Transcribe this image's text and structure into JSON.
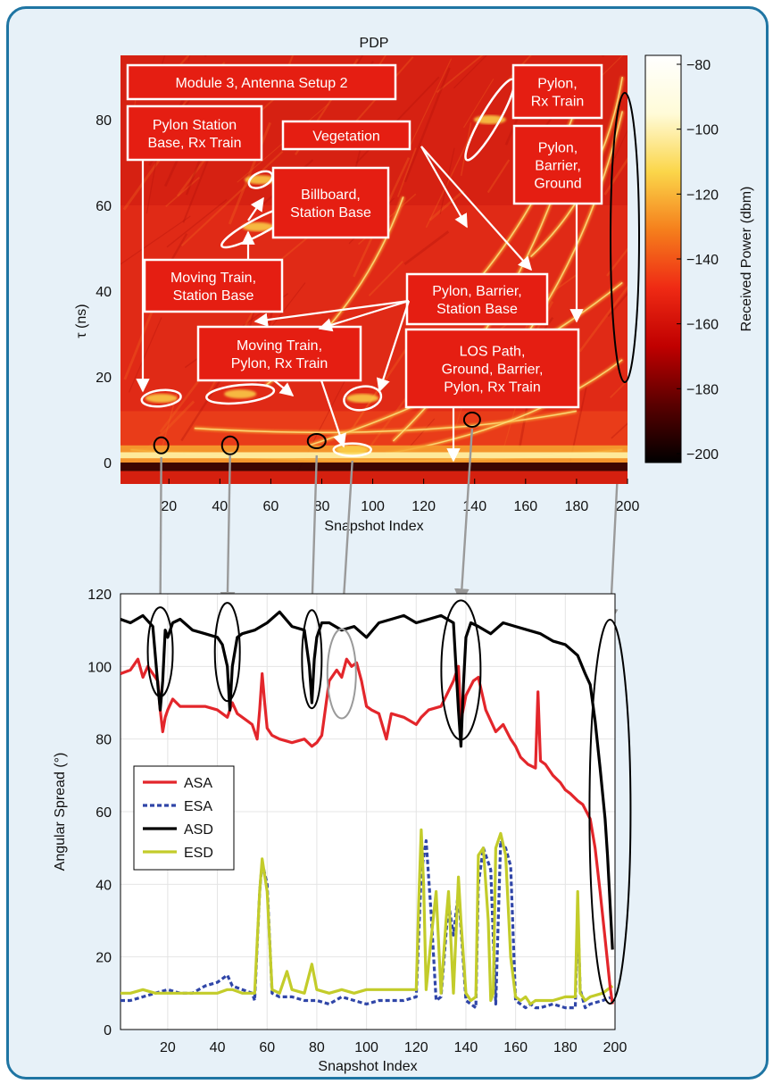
{
  "chart_data": [
    {
      "type": "heatmap",
      "title": "PDP",
      "xlabel": "Snapshot Index",
      "ylabel": "τ (ns)",
      "xticks": [
        20,
        40,
        60,
        80,
        100,
        120,
        140,
        160,
        180,
        200
      ],
      "yticks": [
        0,
        20,
        40,
        60,
        80
      ],
      "xlim": [
        1,
        200
      ],
      "ylim": [
        -5,
        95
      ],
      "colorbar": {
        "label": "Received Power (dbm)",
        "ticks": [
          "−80",
          "−100",
          "−120",
          "−140",
          "−160",
          "−180",
          "−200"
        ],
        "range": [
          -200,
          -80
        ],
        "colors": [
          "#000000",
          "#5a0000",
          "#c00000",
          "#ef2a14",
          "#f57f1c",
          "#fbd64a",
          "#fffbd8",
          "#ffffff"
        ]
      },
      "annotations": [
        {
          "id": "module",
          "lines": [
            "Module 3, Antenna Setup 2"
          ]
        },
        {
          "id": "pylon-station",
          "lines": [
            "Pylon Station",
            "Base, Rx Train"
          ]
        },
        {
          "id": "vegetation",
          "lines": [
            "Vegetation"
          ]
        },
        {
          "id": "pylon-rx",
          "lines": [
            "Pylon,",
            "Rx Train"
          ]
        },
        {
          "id": "pylon-barrier-ground",
          "lines": [
            "Pylon,",
            "Barrier,",
            "Ground"
          ]
        },
        {
          "id": "billboard",
          "lines": [
            "Billboard,",
            "Station Base"
          ]
        },
        {
          "id": "moving-station",
          "lines": [
            "Moving Train,",
            "Station Base"
          ]
        },
        {
          "id": "pylon-barrier-station",
          "lines": [
            "Pylon, Barrier,",
            "Station Base"
          ]
        },
        {
          "id": "moving-pylon",
          "lines": [
            "Moving Train,",
            "Pylon, Rx Train"
          ]
        },
        {
          "id": "los",
          "lines": [
            "LOS Path,",
            "Ground, Barrier,",
            "Pylon, Rx Train"
          ]
        }
      ],
      "path_traces": [
        {
          "x": [
            5,
            198
          ],
          "tau": [
            3,
            3
          ]
        },
        {
          "x": [
            30,
            180
          ],
          "tau": [
            8,
            12
          ]
        },
        {
          "x": [
            105,
            198
          ],
          "tau": [
            2,
            24
          ]
        },
        {
          "x": [
            75,
            198
          ],
          "tau": [
            4,
            42
          ]
        },
        {
          "x": [
            130,
            185
          ],
          "tau": [
            35,
            92
          ]
        },
        {
          "x": [
            108,
            172
          ],
          "tau": [
            5,
            64
          ]
        },
        {
          "x": [
            148,
            198
          ],
          "tau": [
            20,
            82
          ]
        },
        {
          "x": [
            162,
            198
          ],
          "tau": [
            48,
            90
          ]
        },
        {
          "x": [
            58,
            112
          ],
          "tau": [
            18,
            62
          ]
        }
      ],
      "ellipses_tau": [
        {
          "x": 17,
          "tau": 15
        },
        {
          "x": 48,
          "tau": 16
        },
        {
          "x": 96,
          "tau": 15
        },
        {
          "x": 55,
          "tau": 55
        },
        {
          "x": 56,
          "tau": 66
        },
        {
          "x": 146,
          "tau": 80
        },
        {
          "x": 92,
          "tau": 3
        }
      ],
      "markers_tau": [
        {
          "x": 17,
          "tau": 4
        },
        {
          "x": 44,
          "tau": 4
        },
        {
          "x": 78,
          "tau": 5
        },
        {
          "x": 139,
          "tau": 10
        },
        {
          "x": 200,
          "tau": 25
        }
      ]
    },
    {
      "type": "line",
      "xlabel": "Snapshot Index",
      "ylabel": "Angular Spread (°)",
      "xlim": [
        1,
        200
      ],
      "ylim": [
        0,
        120
      ],
      "xticks": [
        20,
        40,
        60,
        80,
        100,
        120,
        140,
        160,
        180,
        200
      ],
      "yticks": [
        0,
        20,
        40,
        60,
        80,
        100,
        120
      ],
      "legend": "middle-left",
      "series": [
        {
          "name": "ASA",
          "color": "#e3262b",
          "style": "solid",
          "x": [
            1,
            5,
            8,
            10,
            12,
            14,
            16,
            17,
            18,
            19,
            20,
            22,
            25,
            30,
            35,
            40,
            42,
            44,
            46,
            48,
            52,
            54,
            56,
            57,
            58,
            59,
            60,
            62,
            65,
            70,
            75,
            78,
            80,
            82,
            85,
            88,
            90,
            92,
            94,
            96,
            98,
            100,
            102,
            105,
            108,
            110,
            115,
            120,
            122,
            125,
            130,
            135,
            137,
            138,
            140,
            143,
            145,
            148,
            150,
            152,
            155,
            158,
            160,
            162,
            165,
            168,
            169,
            170,
            172,
            175,
            178,
            180,
            182,
            185,
            187,
            190,
            192,
            194,
            196,
            198,
            199
          ],
          "y": [
            98,
            99,
            102,
            97,
            100,
            98,
            96,
            88,
            82,
            86,
            88,
            91,
            89,
            89,
            89,
            88,
            87,
            86,
            90,
            87,
            85,
            84,
            80,
            88,
            98,
            90,
            83,
            81,
            80,
            79,
            80,
            78,
            79,
            81,
            96,
            99,
            97,
            102,
            100,
            101,
            96,
            89,
            88,
            87,
            80,
            87,
            86,
            84,
            86,
            88,
            89,
            96,
            100,
            85,
            92,
            96,
            97,
            88,
            85,
            82,
            84,
            80,
            78,
            75,
            73,
            72,
            93,
            74,
            73,
            70,
            68,
            66,
            65,
            63,
            62,
            58,
            50,
            38,
            25,
            12,
            7
          ]
        },
        {
          "name": "ESA",
          "color": "#3046a8",
          "style": "dashed",
          "x": [
            1,
            5,
            10,
            15,
            20,
            25,
            30,
            35,
            40,
            44,
            46,
            50,
            54,
            55,
            57,
            58,
            60,
            62,
            65,
            70,
            75,
            80,
            85,
            90,
            95,
            100,
            105,
            110,
            115,
            120,
            122,
            124,
            126,
            128,
            130,
            133,
            135,
            137,
            138,
            140,
            142,
            144,
            145,
            147,
            150,
            152,
            154,
            156,
            158,
            160,
            162,
            164,
            166,
            168,
            170,
            175,
            180,
            184,
            185,
            186,
            188,
            190,
            195,
            199
          ],
          "y": [
            8,
            8,
            9,
            10,
            11,
            10,
            10,
            12,
            13,
            15,
            12,
            11,
            10,
            8,
            38,
            46,
            40,
            10,
            9,
            9,
            8,
            8,
            7,
            9,
            8,
            7,
            8,
            8,
            8,
            9,
            43,
            52,
            32,
            8,
            9,
            35,
            26,
            38,
            28,
            8,
            7,
            6,
            40,
            50,
            44,
            7,
            52,
            50,
            45,
            8,
            7,
            6,
            7,
            6,
            6,
            7,
            6,
            6,
            33,
            11,
            6,
            7,
            8,
            9
          ]
        },
        {
          "name": "ASD",
          "color": "#000000",
          "style": "solid",
          "x": [
            1,
            5,
            10,
            14,
            16,
            17,
            18,
            19,
            20,
            22,
            25,
            30,
            35,
            40,
            42,
            44,
            45,
            46,
            48,
            50,
            55,
            60,
            65,
            70,
            75,
            77,
            78,
            79,
            80,
            82,
            85,
            90,
            95,
            100,
            105,
            110,
            115,
            120,
            125,
            130,
            135,
            136,
            137,
            138,
            139,
            140,
            142,
            145,
            150,
            155,
            160,
            165,
            170,
            175,
            180,
            185,
            188,
            190,
            192,
            194,
            195,
            196,
            197,
            198,
            199
          ],
          "y": [
            113,
            112,
            114,
            111,
            95,
            88,
            96,
            110,
            108,
            112,
            113,
            110,
            109,
            108,
            106,
            100,
            88,
            100,
            108,
            109,
            110,
            112,
            115,
            111,
            110,
            100,
            90,
            102,
            108,
            112,
            112,
            110,
            111,
            108,
            112,
            113,
            114,
            112,
            113,
            114,
            112,
            100,
            88,
            78,
            95,
            108,
            112,
            111,
            109,
            112,
            111,
            110,
            109,
            107,
            106,
            103,
            98,
            95,
            85,
            72,
            65,
            58,
            48,
            35,
            22
          ]
        },
        {
          "name": "ESD",
          "color": "#c3cc2a",
          "style": "solid",
          "x": [
            1,
            5,
            10,
            15,
            20,
            25,
            30,
            35,
            40,
            44,
            46,
            50,
            54,
            55,
            57,
            58,
            60,
            62,
            65,
            68,
            70,
            75,
            78,
            80,
            85,
            90,
            95,
            100,
            105,
            110,
            115,
            120,
            121,
            122,
            123,
            124,
            126,
            128,
            130,
            132,
            133,
            135,
            137,
            138,
            140,
            142,
            144,
            145,
            147,
            149,
            150,
            151,
            152,
            154,
            156,
            158,
            160,
            162,
            164,
            166,
            168,
            170,
            175,
            180,
            184,
            185,
            186,
            188,
            190,
            195,
            199
          ],
          "y": [
            10,
            10,
            11,
            10,
            10,
            10,
            10,
            10,
            10,
            11,
            11,
            10,
            10,
            10,
            38,
            47,
            38,
            11,
            10,
            16,
            11,
            10,
            18,
            11,
            10,
            11,
            10,
            11,
            11,
            11,
            11,
            11,
            35,
            55,
            40,
            11,
            25,
            38,
            10,
            30,
            38,
            10,
            42,
            30,
            10,
            8,
            9,
            48,
            50,
            30,
            8,
            10,
            50,
            54,
            48,
            20,
            9,
            8,
            9,
            7,
            8,
            8,
            8,
            9,
            9,
            38,
            10,
            8,
            9,
            10,
            12
          ]
        }
      ],
      "ellipses": [
        {
          "x": 17,
          "y": 104,
          "color": "black"
        },
        {
          "x": 44,
          "y": 104,
          "color": "black"
        },
        {
          "x": 78,
          "y": 102,
          "color": "black"
        },
        {
          "x": 138,
          "y": 99,
          "color": "black"
        },
        {
          "x": 90,
          "y": 98,
          "color": "gray"
        },
        {
          "x": 198,
          "y": 60,
          "color": "black"
        }
      ]
    }
  ]
}
